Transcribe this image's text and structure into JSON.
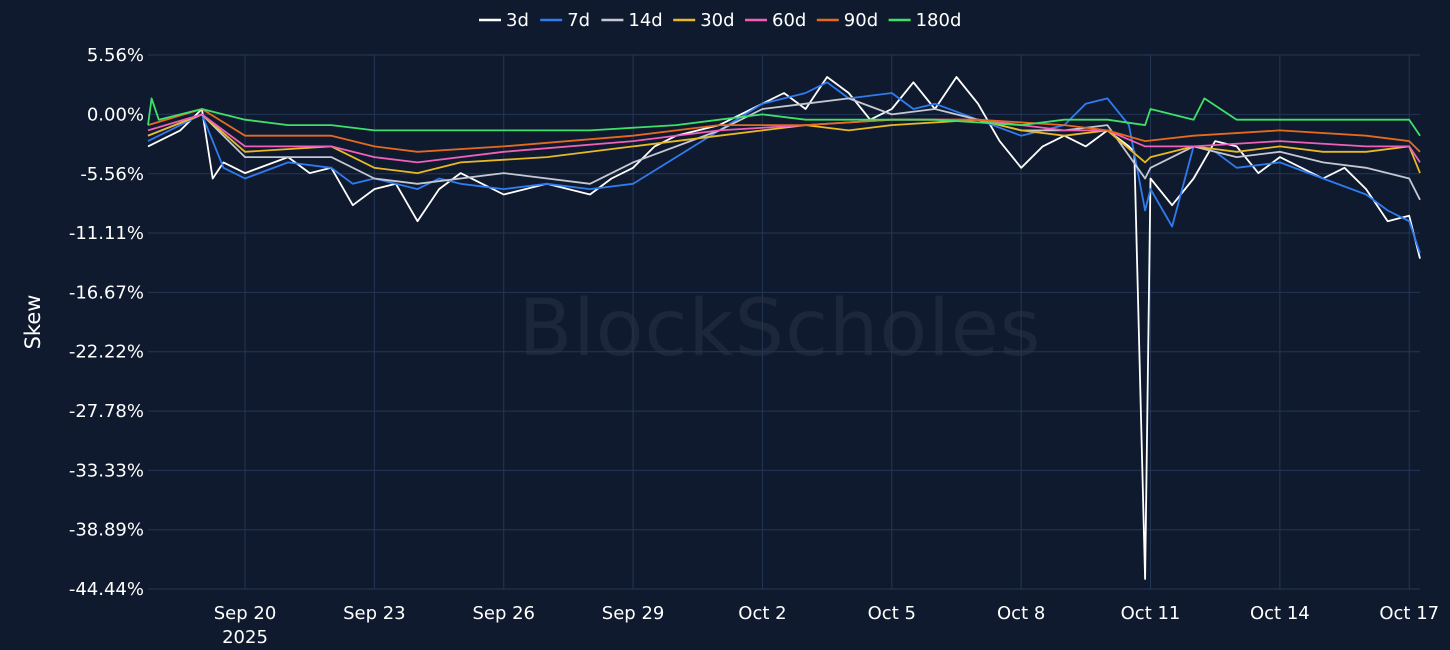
{
  "watermark": "BlockScholes",
  "chart_data": {
    "type": "line",
    "title": "",
    "xlabel": "",
    "ylabel": "Skew",
    "ylim": [
      -44.44,
      5.56
    ],
    "yticks": [
      5.56,
      0.0,
      -5.56,
      -11.11,
      -16.67,
      -22.22,
      -27.78,
      -33.33,
      -38.89,
      -44.44
    ],
    "ytick_labels": [
      "5.56%",
      "0.00%",
      "-5.56%",
      "-11.11%",
      "-16.67%",
      "-22.22%",
      "-27.78%",
      "-33.33%",
      "-38.89%",
      "-44.44%"
    ],
    "xlim": [
      "2025-09-17T18:00",
      "2025-10-17T06:00"
    ],
    "xticks": [
      "2025-09-20",
      "2025-09-23",
      "2025-09-26",
      "2025-09-29",
      "2025-10-02",
      "2025-10-05",
      "2025-10-08",
      "2025-10-11",
      "2025-10-14",
      "2025-10-17"
    ],
    "xtick_labels": [
      "Sep 20",
      "Sep 23",
      "Sep 26",
      "Sep 29",
      "Oct 2",
      "Oct 5",
      "Oct 8",
      "Oct 11",
      "Oct 14",
      "Oct 17"
    ],
    "xtick_sublabel": "2025",
    "grid": true,
    "legend_position": "top-center",
    "series": [
      {
        "name": "3d",
        "color": "#ffffff",
        "x": [
          "2025-09-17T18:00",
          "2025-09-18T12:00",
          "2025-09-19",
          "2025-09-19T06:00",
          "2025-09-19T12:00",
          "2025-09-20",
          "2025-09-21",
          "2025-09-21T12:00",
          "2025-09-22",
          "2025-09-22T12:00",
          "2025-09-23",
          "2025-09-23T12:00",
          "2025-09-24",
          "2025-09-24T12:00",
          "2025-09-25",
          "2025-09-25T12:00",
          "2025-09-26",
          "2025-09-26T12:00",
          "2025-09-27",
          "2025-09-28",
          "2025-09-28T12:00",
          "2025-09-29",
          "2025-09-29T12:00",
          "2025-09-30",
          "2025-10-01",
          "2025-10-02",
          "2025-10-02T12:00",
          "2025-10-03",
          "2025-10-03T12:00",
          "2025-10-04",
          "2025-10-04T12:00",
          "2025-10-05",
          "2025-10-05T12:00",
          "2025-10-06",
          "2025-10-06T12:00",
          "2025-10-07",
          "2025-10-07T12:00",
          "2025-10-08",
          "2025-10-08T12:00",
          "2025-10-09",
          "2025-10-09T12:00",
          "2025-10-10",
          "2025-10-10T12:00",
          "2025-10-10T15:00",
          "2025-10-10T21:00",
          "2025-10-11",
          "2025-10-11T12:00",
          "2025-10-12",
          "2025-10-12T12:00",
          "2025-10-13",
          "2025-10-13T12:00",
          "2025-10-14",
          "2025-10-15",
          "2025-10-15T12:00",
          "2025-10-16",
          "2025-10-16T12:00",
          "2025-10-17",
          "2025-10-17T06:00"
        ],
        "y": [
          -3.0,
          -1.5,
          0.5,
          -6.0,
          -4.5,
          -5.5,
          -4.0,
          -5.5,
          -5.0,
          -8.5,
          -7.0,
          -6.5,
          -10.0,
          -7.0,
          -5.5,
          -6.5,
          -7.5,
          -7.0,
          -6.5,
          -7.5,
          -6.0,
          -5.0,
          -3.0,
          -2.0,
          -1.0,
          1.0,
          2.0,
          0.5,
          3.5,
          2.0,
          -0.5,
          0.5,
          3.0,
          0.5,
          3.5,
          1.0,
          -2.5,
          -5.0,
          -3.0,
          -2.0,
          -3.0,
          -1.5,
          -3.0,
          -3.5,
          -43.5,
          -6.0,
          -8.5,
          -6.0,
          -2.5,
          -3.0,
          -5.5,
          -4.0,
          -6.0,
          -5.0,
          -7.0,
          -10.0,
          -9.5,
          -13.5
        ]
      },
      {
        "name": "7d",
        "color": "#2f7bf0",
        "x": [
          "2025-09-17T18:00",
          "2025-09-18T12:00",
          "2025-09-19",
          "2025-09-19T12:00",
          "2025-09-20",
          "2025-09-21",
          "2025-09-22",
          "2025-09-22T12:00",
          "2025-09-23",
          "2025-09-24",
          "2025-09-24T12:00",
          "2025-09-25",
          "2025-09-26",
          "2025-09-27",
          "2025-09-28",
          "2025-09-29",
          "2025-09-30",
          "2025-10-01",
          "2025-10-02",
          "2025-10-03",
          "2025-10-03T12:00",
          "2025-10-04",
          "2025-10-05",
          "2025-10-05T12:00",
          "2025-10-06",
          "2025-10-07",
          "2025-10-08",
          "2025-10-09",
          "2025-10-09T12:00",
          "2025-10-10",
          "2025-10-10T12:00",
          "2025-10-10T21:00",
          "2025-10-11",
          "2025-10-11T12:00",
          "2025-10-12",
          "2025-10-12T12:00",
          "2025-10-13",
          "2025-10-14",
          "2025-10-15",
          "2025-10-16",
          "2025-10-16T12:00",
          "2025-10-17",
          "2025-10-17T06:00"
        ],
        "y": [
          -2.5,
          -1.0,
          0.0,
          -5.0,
          -6.0,
          -4.5,
          -5.0,
          -6.5,
          -6.0,
          -7.0,
          -6.0,
          -6.5,
          -7.0,
          -6.5,
          -7.0,
          -6.5,
          -4.0,
          -1.5,
          1.0,
          2.0,
          3.0,
          1.5,
          2.0,
          0.5,
          1.0,
          -0.5,
          -2.0,
          -1.0,
          1.0,
          1.5,
          -1.0,
          -9.0,
          -7.0,
          -10.5,
          -3.0,
          -3.5,
          -5.0,
          -4.5,
          -6.0,
          -7.5,
          -9.0,
          -10.0,
          -13.0
        ]
      },
      {
        "name": "14d",
        "color": "#c4c8d2",
        "x": [
          "2025-09-17T18:00",
          "2025-09-19",
          "2025-09-20",
          "2025-09-22",
          "2025-09-23",
          "2025-09-24",
          "2025-09-26",
          "2025-09-28",
          "2025-09-29",
          "2025-10-01",
          "2025-10-02",
          "2025-10-03",
          "2025-10-04",
          "2025-10-05",
          "2025-10-06",
          "2025-10-07",
          "2025-10-08",
          "2025-10-09",
          "2025-10-10",
          "2025-10-10T21:00",
          "2025-10-11",
          "2025-10-12",
          "2025-10-13",
          "2025-10-14",
          "2025-10-15",
          "2025-10-16",
          "2025-10-17",
          "2025-10-17T06:00"
        ],
        "y": [
          -2.0,
          0.0,
          -4.0,
          -4.0,
          -6.0,
          -6.5,
          -5.5,
          -6.5,
          -4.5,
          -1.5,
          0.5,
          1.0,
          1.5,
          0.0,
          0.5,
          -0.5,
          -1.5,
          -1.5,
          -1.0,
          -6.0,
          -5.0,
          -3.0,
          -4.0,
          -3.5,
          -4.5,
          -5.0,
          -6.0,
          -8.0
        ]
      },
      {
        "name": "30d",
        "color": "#e8b825",
        "x": [
          "2025-09-17T18:00",
          "2025-09-19",
          "2025-09-20",
          "2025-09-22",
          "2025-09-23",
          "2025-09-24",
          "2025-09-25",
          "2025-09-27",
          "2025-09-29",
          "2025-10-01",
          "2025-10-02",
          "2025-10-03",
          "2025-10-04",
          "2025-10-05",
          "2025-10-07",
          "2025-10-08",
          "2025-10-09",
          "2025-10-10",
          "2025-10-10T21:00",
          "2025-10-11",
          "2025-10-12",
          "2025-10-13",
          "2025-10-14",
          "2025-10-15",
          "2025-10-16",
          "2025-10-17",
          "2025-10-17T06:00"
        ],
        "y": [
          -2.0,
          0.0,
          -3.5,
          -3.0,
          -5.0,
          -5.5,
          -4.5,
          -4.0,
          -3.0,
          -2.0,
          -1.5,
          -1.0,
          -1.5,
          -1.0,
          -0.5,
          -1.5,
          -2.0,
          -1.5,
          -4.5,
          -4.0,
          -3.0,
          -3.5,
          -3.0,
          -3.5,
          -3.5,
          -3.0,
          -5.5
        ]
      },
      {
        "name": "60d",
        "color": "#f060b8",
        "x": [
          "2025-09-17T18:00",
          "2025-09-19",
          "2025-09-20",
          "2025-09-22",
          "2025-09-23",
          "2025-09-24",
          "2025-09-26",
          "2025-09-29",
          "2025-10-01",
          "2025-10-03",
          "2025-10-05",
          "2025-10-07",
          "2025-10-09",
          "2025-10-10",
          "2025-10-10T21:00",
          "2025-10-12",
          "2025-10-14",
          "2025-10-16",
          "2025-10-17",
          "2025-10-17T06:00"
        ],
        "y": [
          -1.5,
          0.0,
          -3.0,
          -3.0,
          -4.0,
          -4.5,
          -3.5,
          -2.5,
          -1.5,
          -1.0,
          -0.5,
          -0.5,
          -1.5,
          -1.5,
          -3.0,
          -3.0,
          -2.5,
          -3.0,
          -3.0,
          -4.5
        ]
      },
      {
        "name": "90d",
        "color": "#e56a1e",
        "x": [
          "2025-09-17T18:00",
          "2025-09-19",
          "2025-09-20",
          "2025-09-22",
          "2025-09-23",
          "2025-09-24",
          "2025-09-26",
          "2025-09-29",
          "2025-10-01",
          "2025-10-03",
          "2025-10-05",
          "2025-10-07",
          "2025-10-09",
          "2025-10-10",
          "2025-10-10T21:00",
          "2025-10-12",
          "2025-10-14",
          "2025-10-16",
          "2025-10-17",
          "2025-10-17T06:00"
        ],
        "y": [
          -1.0,
          0.5,
          -2.0,
          -2.0,
          -3.0,
          -3.5,
          -3.0,
          -2.0,
          -1.0,
          -1.0,
          -0.5,
          -0.5,
          -1.0,
          -1.5,
          -2.5,
          -2.0,
          -1.5,
          -2.0,
          -2.5,
          -3.5
        ]
      },
      {
        "name": "180d",
        "color": "#3fe06a",
        "x": [
          "2025-09-17T18:00",
          "2025-09-17T20:00",
          "2025-09-18",
          "2025-09-19",
          "2025-09-20",
          "2025-09-21",
          "2025-09-22",
          "2025-09-23",
          "2025-09-24",
          "2025-09-26",
          "2025-09-28",
          "2025-09-30",
          "2025-10-01",
          "2025-10-02",
          "2025-10-03",
          "2025-10-04",
          "2025-10-06",
          "2025-10-08",
          "2025-10-09",
          "2025-10-10",
          "2025-10-10T21:00",
          "2025-10-11",
          "2025-10-12",
          "2025-10-12T06:00",
          "2025-10-13",
          "2025-10-14",
          "2025-10-15",
          "2025-10-16",
          "2025-10-17",
          "2025-10-17T06:00"
        ],
        "y": [
          -1.0,
          1.5,
          -0.5,
          0.5,
          -0.5,
          -1.0,
          -1.0,
          -1.5,
          -1.5,
          -1.5,
          -1.5,
          -1.0,
          -0.5,
          0.0,
          -0.5,
          -0.5,
          -0.5,
          -1.0,
          -0.5,
          -0.5,
          -1.0,
          0.5,
          -0.5,
          1.5,
          -0.5,
          -0.5,
          -0.5,
          -0.5,
          -0.5,
          -2.0
        ]
      }
    ]
  }
}
